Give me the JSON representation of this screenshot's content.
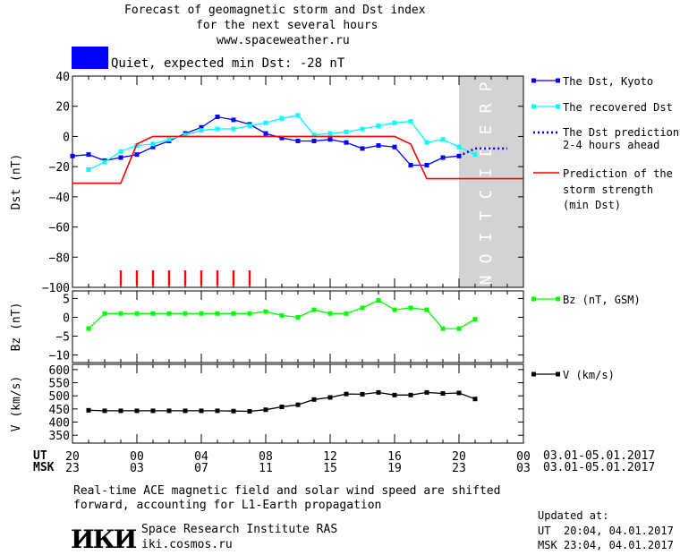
{
  "header": {
    "title_lines": [
      "Forecast of geomagnetic storm and Dst index",
      "for the next several hours",
      "www.spaceweather.ru"
    ],
    "status_color": "#0000ff",
    "status_text": "Quiet, expected min Dst: -28 nT"
  },
  "legend": {
    "dst_kyoto": "The Dst, Kyoto",
    "recovered": "The recovered Dst",
    "prediction_1": "The Dst prediction",
    "prediction_2": "2-4 hours ahead",
    "storm_1": "Prediction of the",
    "storm_2": "storm strength",
    "storm_3": "(min Dst)",
    "bz": "Bz (nT, GSM)",
    "v": "V (km/s)"
  },
  "colors": {
    "dst_kyoto": "#0000ff",
    "recovered": "#00ffff",
    "prediction": "#0000ff",
    "storm": "#ff0000",
    "bz": "#00ff00",
    "v": "#000000",
    "prediction_zone": "#d3d3d3"
  },
  "prediction_label": "PREDICTION",
  "x_axis": {
    "ut_label": "UT",
    "msk_label": "MSK",
    "ut_ticks": [
      20,
      0,
      4,
      8,
      12,
      16,
      20,
      0
    ],
    "ut_tick_labels": [
      "20",
      "00",
      "04",
      "08",
      "12",
      "16",
      "20",
      "00"
    ],
    "msk_tick_labels": [
      "23",
      "03",
      "07",
      "11",
      "15",
      "19",
      "23",
      "03"
    ],
    "ut_range": "03.01-05.01.2017",
    "msk_range": "03.01-05.01.2017"
  },
  "chart_data": [
    {
      "type": "line",
      "panel": "dst",
      "ylabel": "Dst (nT)",
      "ylim": [
        -100,
        40
      ],
      "yticks": [
        40,
        20,
        0,
        -20,
        -40,
        -60,
        -80,
        -100
      ],
      "x_units": "hours since 20 UT 03.01.2017",
      "xlim": [
        0,
        28
      ],
      "prediction_zone_x": [
        24,
        28
      ],
      "series": [
        {
          "name": "The Dst, Kyoto",
          "style": "line-markers",
          "color": "#0000ff",
          "x": [
            0,
            1,
            2,
            3,
            4,
            5,
            6,
            7,
            8,
            9,
            10,
            11,
            12,
            13,
            14,
            15,
            16,
            17,
            18,
            19,
            20,
            21,
            22,
            23,
            24
          ],
          "y": [
            -13,
            -12,
            -16,
            -14,
            -12,
            -7,
            -3,
            2,
            6,
            13,
            11,
            8,
            2,
            -1,
            -3,
            -3,
            -2,
            -4,
            -8,
            -6,
            -7,
            -19,
            -19,
            -14,
            -13
          ]
        },
        {
          "name": "The recovered Dst",
          "style": "line-markers",
          "color": "#00ffff",
          "x": [
            1,
            2,
            3,
            4,
            5,
            6,
            7,
            8,
            9,
            10,
            11,
            12,
            13,
            14,
            15,
            16,
            17,
            18,
            19,
            20,
            21,
            22,
            23,
            24,
            25
          ],
          "y": [
            -22,
            -17,
            -10,
            -6,
            -5,
            -2,
            1,
            4,
            5,
            5,
            7,
            9,
            12,
            14,
            1,
            2,
            3,
            5,
            7,
            9,
            10,
            -4,
            -2,
            -7,
            -12
          ]
        },
        {
          "name": "The Dst prediction 2-4 hours ahead",
          "style": "dotted",
          "color": "#0000ff",
          "x": [
            24,
            25,
            26,
            27
          ],
          "y": [
            -13,
            -8,
            -8,
            -8
          ]
        },
        {
          "name": "Prediction of the storm strength (min Dst)",
          "style": "step",
          "color": "#ff0000",
          "x": [
            0,
            3,
            4,
            5,
            20,
            21,
            22,
            28
          ],
          "y": [
            -31,
            -31,
            -5,
            0,
            0,
            -5,
            -28,
            -28
          ]
        }
      ],
      "markers": {
        "color": "#ff0000",
        "x": [
          3,
          4,
          5,
          6,
          7,
          8,
          9,
          10,
          11
        ]
      }
    },
    {
      "type": "line",
      "panel": "bz",
      "ylabel": "Bz (nT)",
      "ylim": [
        -12,
        7
      ],
      "yticks": [
        5,
        0,
        -5,
        -10
      ],
      "series": [
        {
          "name": "Bz (nT, GSM)",
          "color": "#00ff00",
          "x": [
            1,
            2,
            3,
            4,
            5,
            6,
            7,
            8,
            9,
            10,
            11,
            12,
            13,
            14,
            15,
            16,
            17,
            18,
            19,
            20,
            21,
            22,
            23,
            24,
            25
          ],
          "y": [
            -3,
            1,
            1,
            1,
            1,
            1,
            1,
            1,
            1,
            1,
            1,
            1.5,
            0.5,
            0,
            2,
            1,
            1,
            2.5,
            4.5,
            2,
            2.5,
            2,
            -3,
            -3,
            -0.5
          ]
        }
      ]
    },
    {
      "type": "line",
      "panel": "v",
      "ylabel": "V (km/s)",
      "ylim": [
        320,
        620
      ],
      "yticks": [
        600,
        550,
        500,
        450,
        400,
        350
      ],
      "series": [
        {
          "name": "V (km/s)",
          "color": "#000000",
          "x": [
            1,
            2,
            3,
            4,
            5,
            6,
            7,
            8,
            9,
            10,
            11,
            12,
            13,
            14,
            15,
            16,
            17,
            18,
            19,
            20,
            21,
            22,
            23,
            24,
            25
          ],
          "y": [
            445,
            443,
            443,
            443,
            443,
            443,
            443,
            443,
            443,
            442,
            441,
            447,
            458,
            466,
            486,
            494,
            507,
            506,
            513,
            503,
            503,
            513,
            509,
            511,
            488
          ]
        }
      ]
    }
  ],
  "footer": {
    "note_1": "Real-time ACE magnetic field and solar wind speed are shifted",
    "note_2": "forward, accounting for L1-Earth propagation",
    "logo_text": "ИКИ",
    "institute": "Space Research Institute RAS",
    "site": "iki.cosmos.ru",
    "updated_label": "Updated at:",
    "ut_label": "UT",
    "ut_time": "20:04, 04.01.2017",
    "msk_label": "MSK",
    "msk_time": "23:04, 04.01.2017"
  }
}
